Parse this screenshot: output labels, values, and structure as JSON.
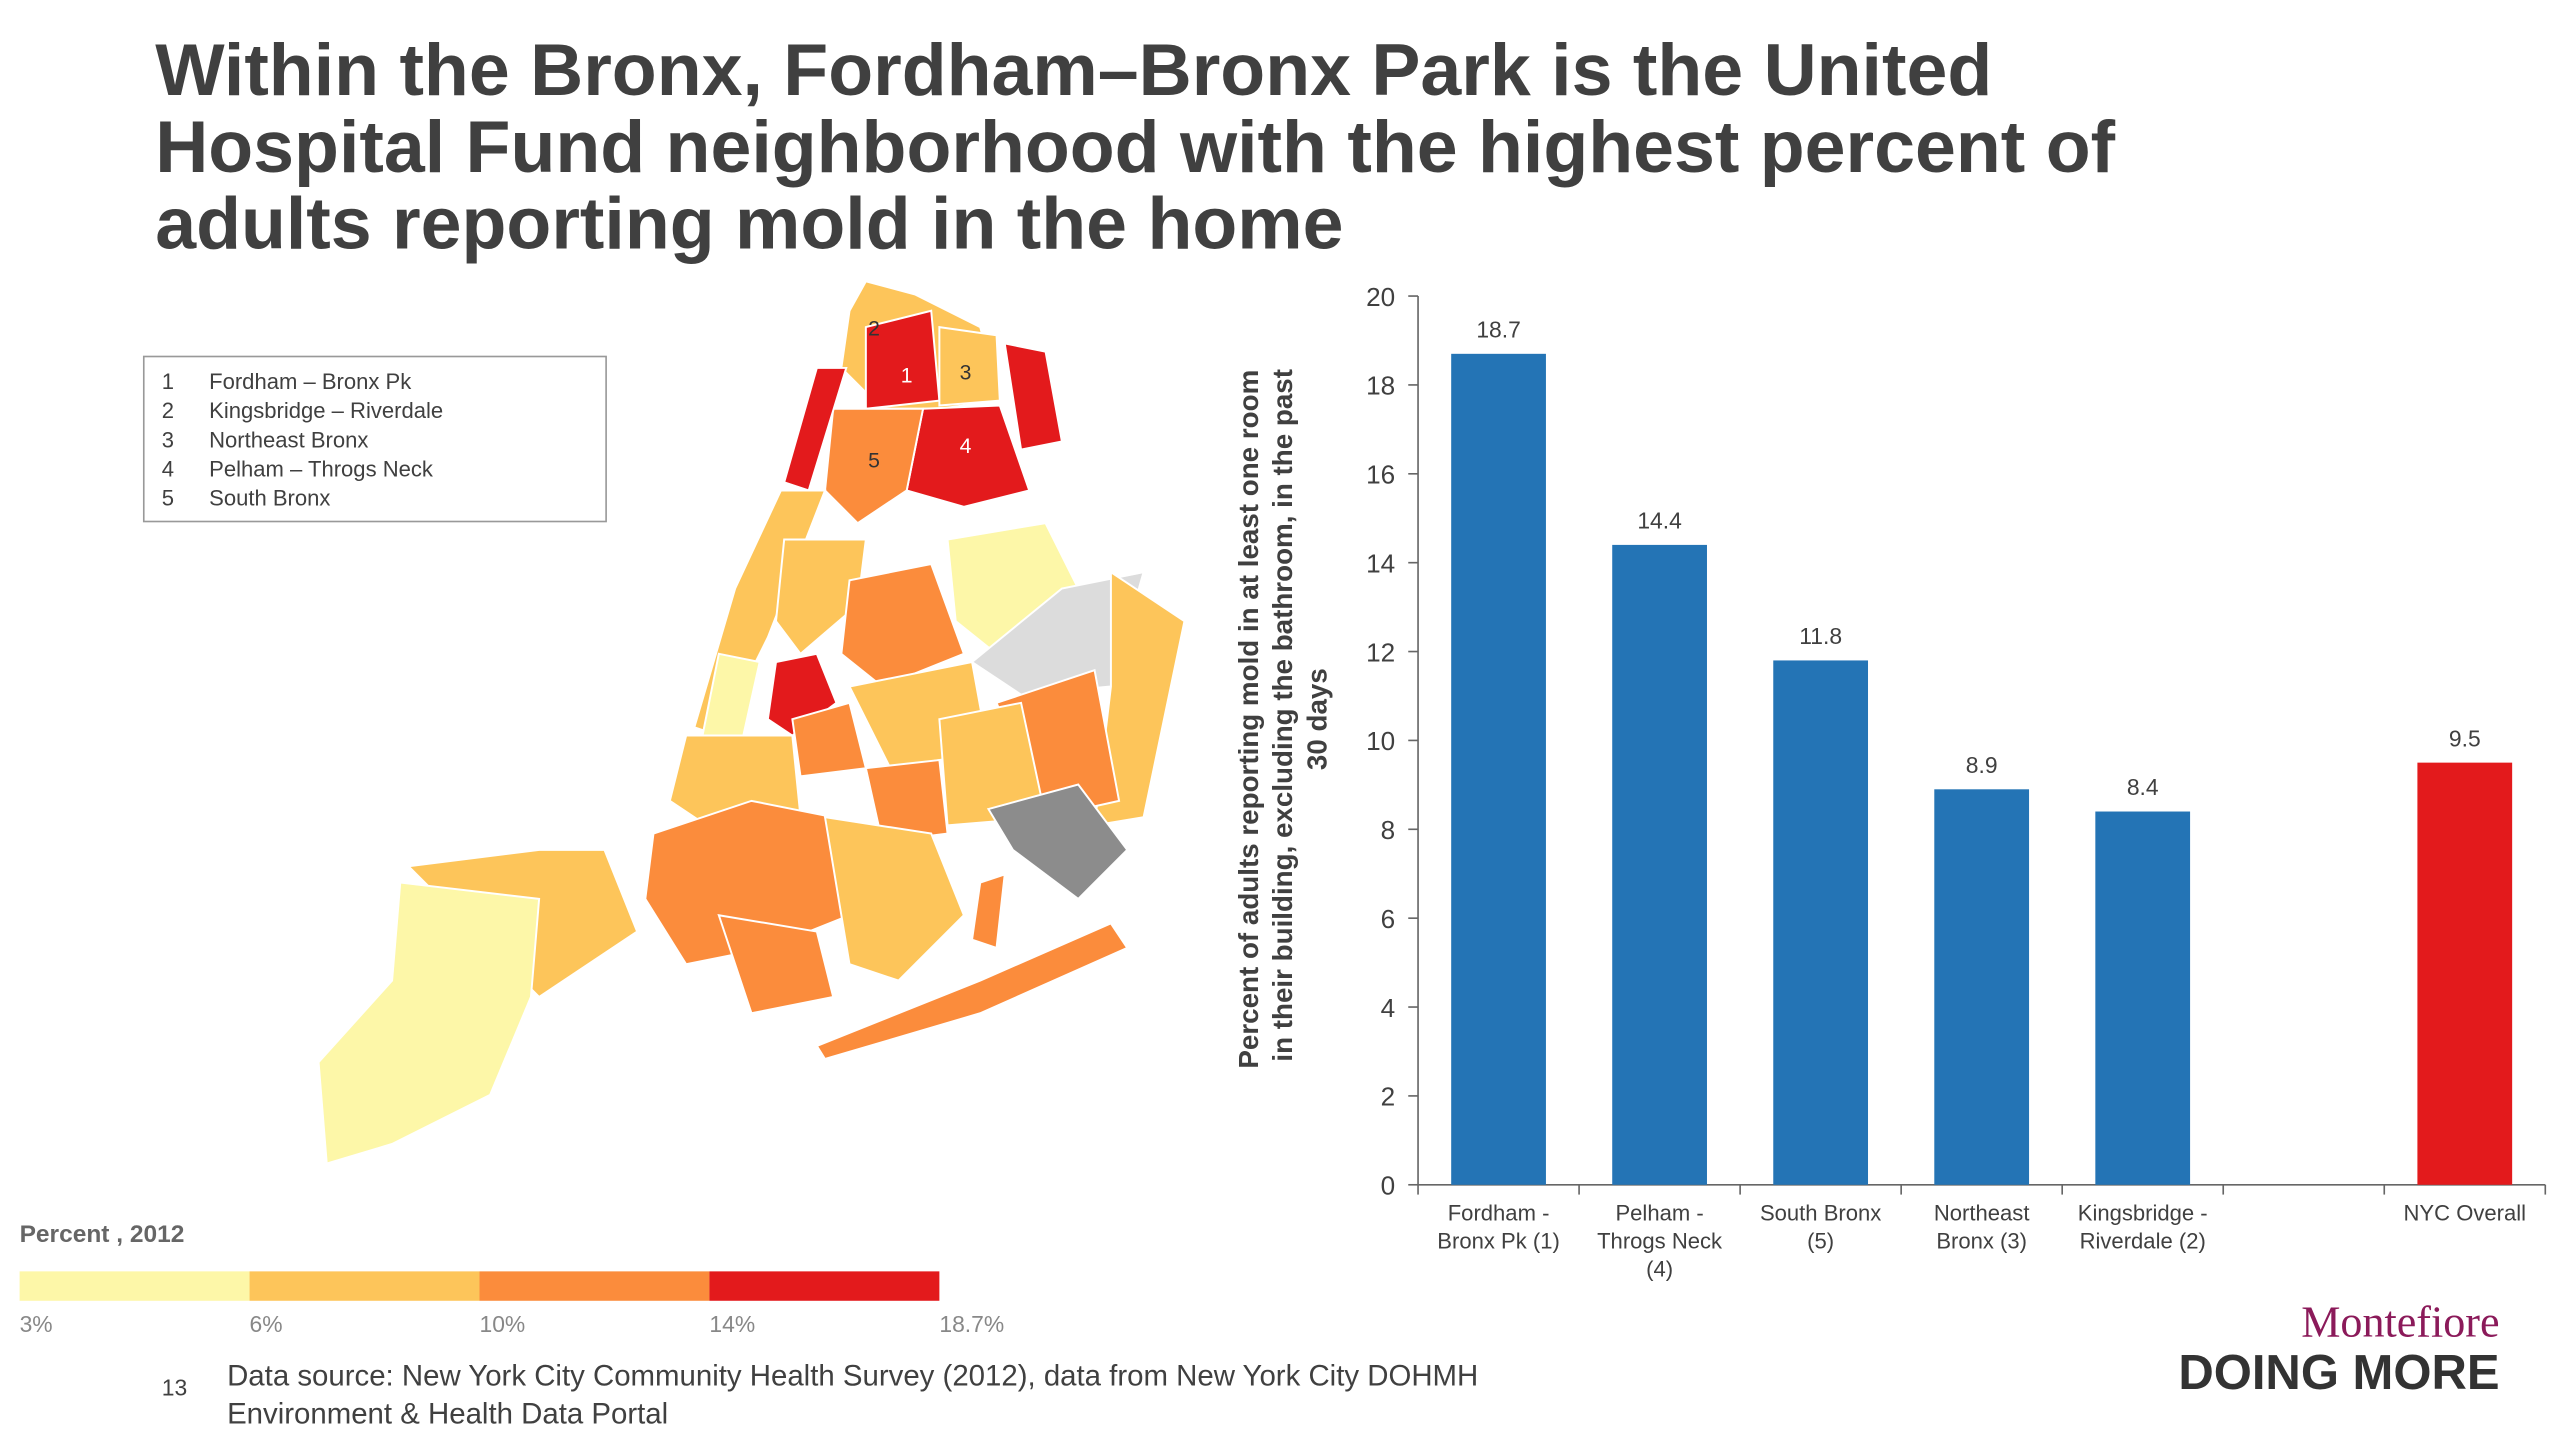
{
  "chart_data": {
    "type": "bar",
    "title": "Within the Bronx, Fordham–Bronx Park is the United\nHospital Fund neighborhood with the highest percent of\nadults reporting mold in the home",
    "y_axis_label": "Percent of adults reporting mold in at least one room\n in their building, excluding the bathroom, in the past\n30 days",
    "categories": [
      "Fordham -\nBronx Pk (1)",
      "Pelham -\nThrogs Neck\n(4)",
      "South Bronx\n(5)",
      "Northeast\nBronx (3)",
      "Kingsbridge -\nRiverdale (2)",
      null,
      "NYC Overall"
    ],
    "values": [
      18.7,
      14.4,
      11.8,
      8.9,
      8.4,
      null,
      9.5
    ],
    "colors": [
      "#2474b5",
      "#2474b5",
      "#2474b5",
      "#2474b5",
      "#2474b5",
      null,
      "#e31a1c"
    ],
    "ylim": [
      0,
      20
    ],
    "yticks": [
      0,
      2,
      4,
      6,
      8,
      10,
      12,
      14,
      16,
      18,
      20
    ],
    "map_legend": [
      "1",
      "Fordham – Bronx Pk",
      "2",
      "Kingsbridge – Riverdale",
      "3",
      "Northeast Bronx",
      "4",
      "Pelham – Throgs Neck",
      "5",
      "South Bronx"
    ],
    "map_labels": [
      "2",
      "1",
      "3",
      "5",
      "4"
    ],
    "color_scale": {
      "title": "Percent , 2012",
      "stops": [
        {
          "value": 3,
          "label": "3%"
        },
        {
          "value": 6,
          "label": "6%"
        },
        {
          "value": 10,
          "label": "10%"
        },
        {
          "value": 14,
          "label": "14%"
        },
        {
          "value": 18.7,
          "label": "18.7%"
        }
      ],
      "colors": [
        "#fdf7a8",
        "#fdc55a",
        "#fb8c3c",
        "#e31a1c"
      ]
    },
    "page_number": "13",
    "source": "Data source: New York City Community Health Survey (2012), data from New York City DOHMH\nEnvironment & Health Data Portal",
    "logo_top": "Montefiore",
    "logo_bottom": "DOING MORE"
  }
}
